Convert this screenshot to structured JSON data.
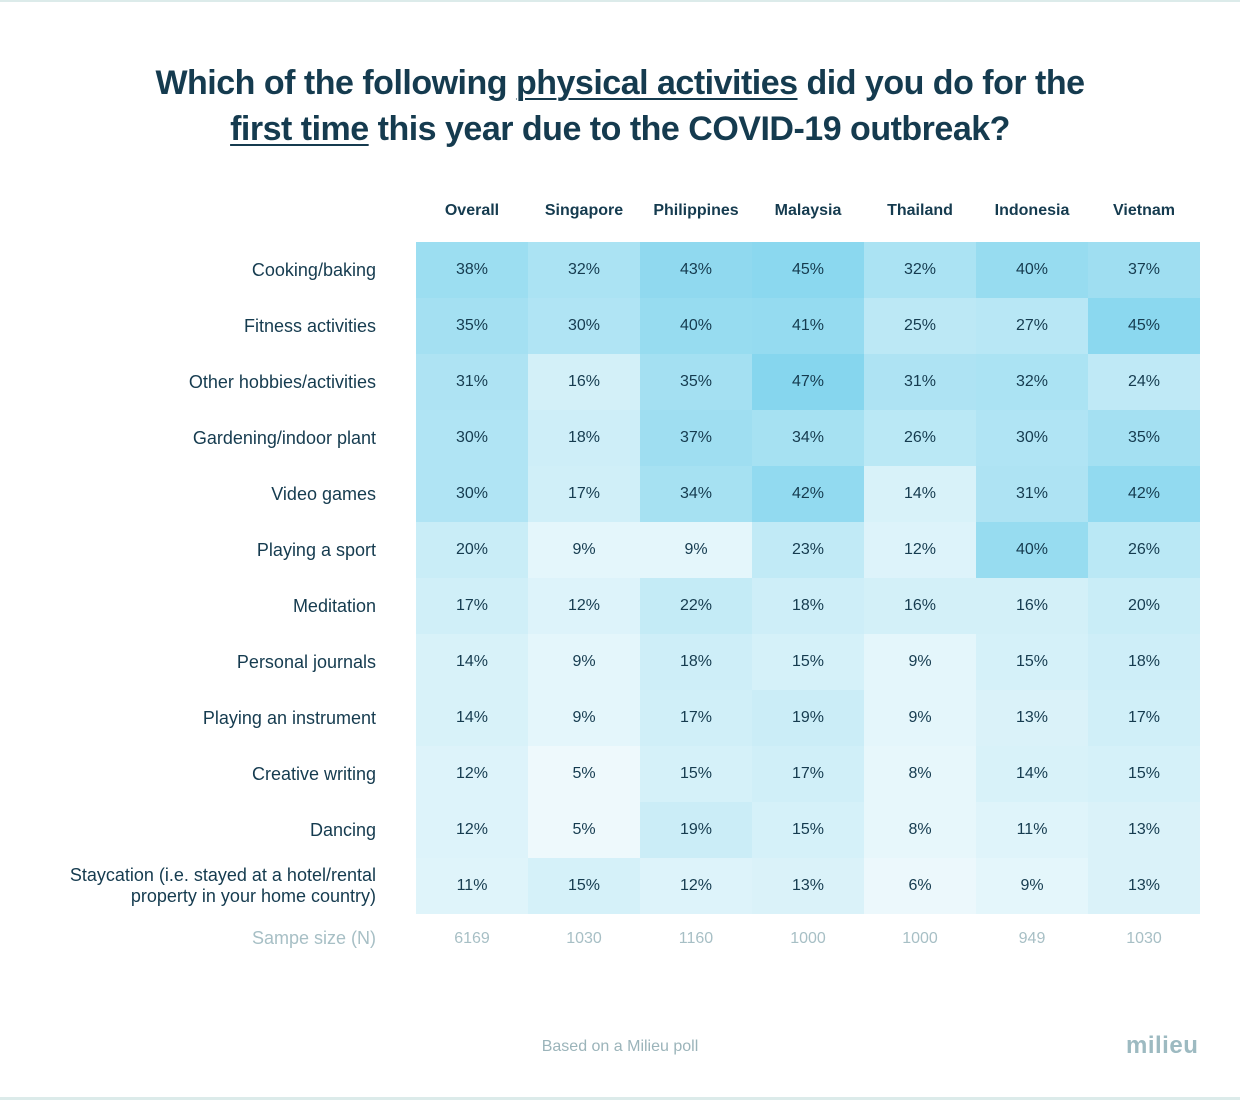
{
  "title": {
    "line1_pre": "Which of the following ",
    "line1_underlined": "physical activities",
    "line1_post": " did you do for the",
    "line2_underlined": "first time",
    "line2_post": " this year due to the COVID-19 outbreak?"
  },
  "footer": {
    "note": "Based on a Milieu poll",
    "logo": "milieu"
  },
  "colors": {
    "low": "#eef9fc",
    "high": "#86d6ee",
    "text": "#153b4f",
    "muted": "#a7bfc5"
  },
  "chart_data": {
    "type": "heatmap",
    "title": "Which of the following physical activities did you do for the first time this year due to the COVID-19 outbreak?",
    "columns": [
      "Overall",
      "Singapore",
      "Philippines",
      "Malaysia",
      "Thailand",
      "Indonesia",
      "Vietnam"
    ],
    "rows": [
      "Cooking/baking",
      "Fitness activities",
      "Other hobbies/activities",
      "Gardening/indoor plant",
      "Video games",
      "Playing a sport",
      "Meditation",
      "Personal journals",
      "Playing an instrument",
      "Creative writing",
      "Dancing",
      "Staycation (i.e. stayed at a hotel/rental property in your home country)"
    ],
    "values": [
      [
        38,
        32,
        43,
        45,
        32,
        40,
        37
      ],
      [
        35,
        30,
        40,
        41,
        25,
        27,
        45
      ],
      [
        31,
        16,
        35,
        47,
        31,
        32,
        24
      ],
      [
        30,
        18,
        37,
        34,
        26,
        30,
        35
      ],
      [
        30,
        17,
        34,
        42,
        14,
        31,
        42
      ],
      [
        20,
        9,
        9,
        23,
        12,
        40,
        26
      ],
      [
        17,
        12,
        22,
        18,
        16,
        16,
        20
      ],
      [
        14,
        9,
        18,
        15,
        9,
        15,
        18
      ],
      [
        14,
        9,
        17,
        19,
        9,
        13,
        17
      ],
      [
        12,
        5,
        15,
        17,
        8,
        14,
        15
      ],
      [
        12,
        5,
        19,
        15,
        8,
        11,
        13
      ],
      [
        11,
        15,
        12,
        13,
        6,
        9,
        13
      ]
    ],
    "value_suffix": "%",
    "color_range": [
      5,
      47
    ],
    "sample_size_label": "Sampe size (N)",
    "sample_sizes": [
      6169,
      1030,
      1160,
      1000,
      1000,
      949,
      1030
    ]
  }
}
